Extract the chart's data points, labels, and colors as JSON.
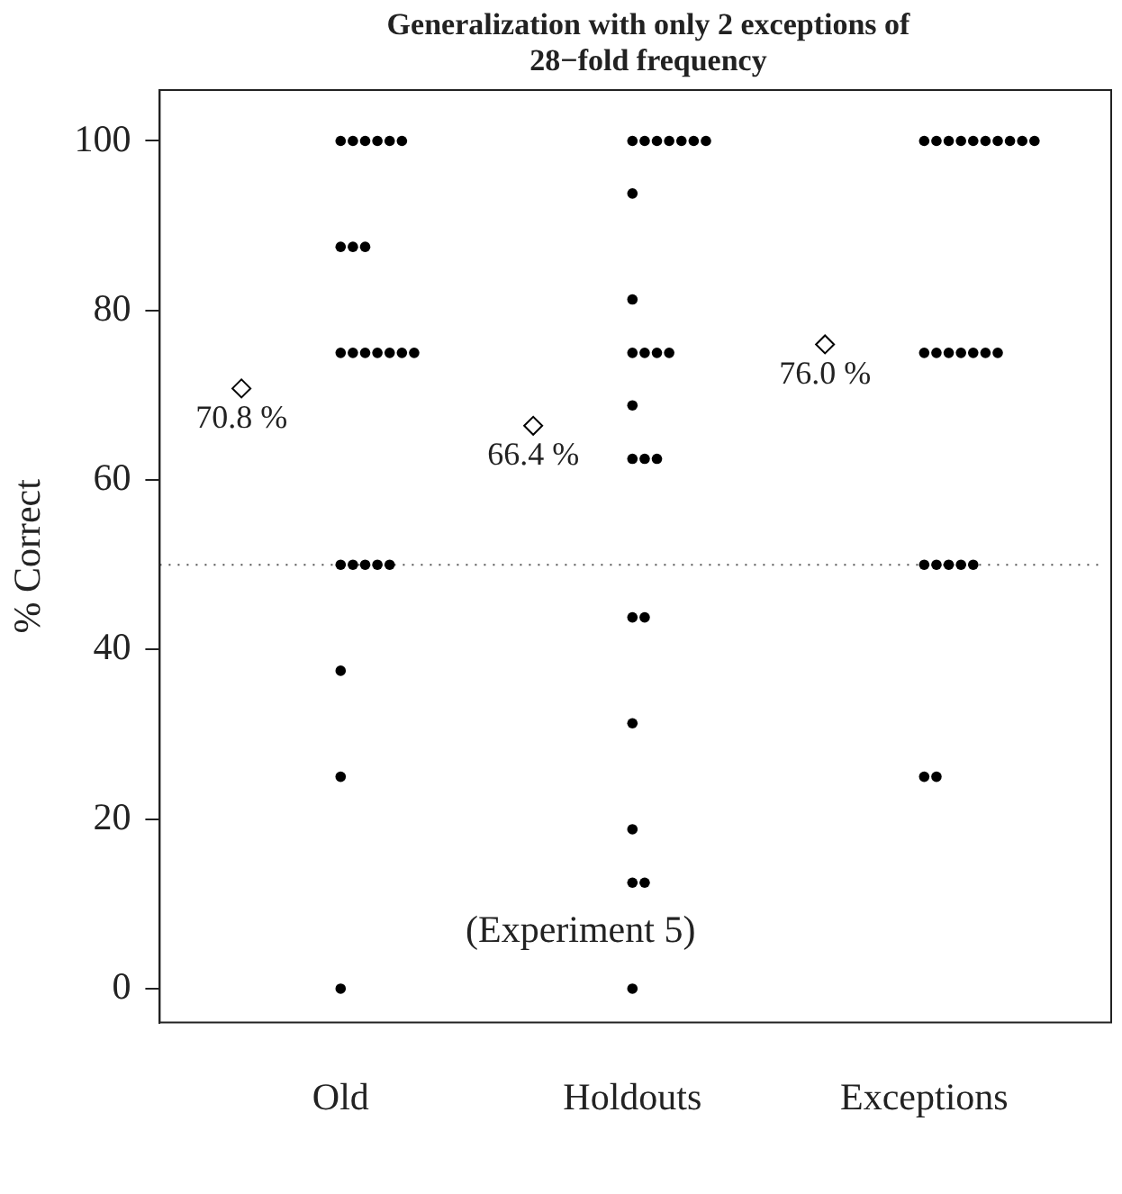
{
  "chart_data": {
    "type": "scatter",
    "title": "Generalization with only 2 exceptions of 28−fold frequency",
    "ylabel": "% Correct",
    "categories": [
      "Old",
      "Holdouts",
      "Exceptions"
    ],
    "ylim": [
      -4,
      106
    ],
    "yticks": [
      0,
      20,
      40,
      60,
      80,
      100
    ],
    "grid": false,
    "legend": false,
    "series": [
      {
        "color": "#000000",
        "marker": "circle",
        "x": [
          "Old",
          "Old",
          "Old",
          "Old",
          "Old",
          "Old",
          "Old",
          "Old",
          "Old",
          "Old",
          "Old",
          "Old",
          "Old",
          "Old",
          "Old",
          "Old",
          "Old",
          "Old",
          "Old",
          "Old",
          "Old",
          "Old",
          "Old",
          "Old",
          "Holdouts",
          "Holdouts",
          "Holdouts",
          "Holdouts",
          "Holdouts",
          "Holdouts",
          "Holdouts",
          "Holdouts",
          "Holdouts",
          "Holdouts",
          "Holdouts",
          "Holdouts",
          "Holdouts",
          "Holdouts",
          "Holdouts",
          "Holdouts",
          "Holdouts",
          "Holdouts",
          "Holdouts",
          "Holdouts",
          "Holdouts",
          "Holdouts",
          "Holdouts",
          "Holdouts",
          "Exceptions",
          "Exceptions",
          "Exceptions",
          "Exceptions",
          "Exceptions",
          "Exceptions",
          "Exceptions",
          "Exceptions",
          "Exceptions",
          "Exceptions",
          "Exceptions",
          "Exceptions",
          "Exceptions",
          "Exceptions",
          "Exceptions",
          "Exceptions",
          "Exceptions",
          "Exceptions",
          "Exceptions",
          "Exceptions",
          "Exceptions",
          "Exceptions",
          "Exceptions",
          "Exceptions"
        ],
        "values": [
          100,
          100,
          100,
          100,
          100,
          100,
          87.5,
          87.5,
          87.5,
          75,
          75,
          75,
          75,
          75,
          75,
          75,
          50,
          50,
          50,
          50,
          50,
          37.5,
          25,
          0,
          100,
          100,
          100,
          100,
          100,
          100,
          100,
          93.8,
          81.3,
          75,
          75,
          75,
          75,
          68.8,
          62.5,
          62.5,
          62.5,
          43.8,
          43.8,
          31.3,
          18.8,
          12.5,
          12.5,
          0,
          100,
          100,
          100,
          100,
          100,
          100,
          100,
          100,
          100,
          100,
          75,
          75,
          75,
          75,
          75,
          75,
          75,
          50,
          50,
          50,
          50,
          50,
          25,
          25
        ]
      },
      {
        "color": "#000000",
        "marker": "diamond",
        "x": [
          "Old",
          "Holdouts",
          "Exceptions"
        ],
        "values": [
          70.8,
          66.4,
          76.0
        ],
        "value_labels": [
          "70.8 %",
          "66.4 %",
          "76.0 %"
        ]
      }
    ],
    "ref_lines": [
      {
        "axis": "y",
        "value": 50,
        "line_style": "dotted",
        "color": "#555555"
      }
    ],
    "annotations": [
      "(Experiment 5)"
    ]
  }
}
